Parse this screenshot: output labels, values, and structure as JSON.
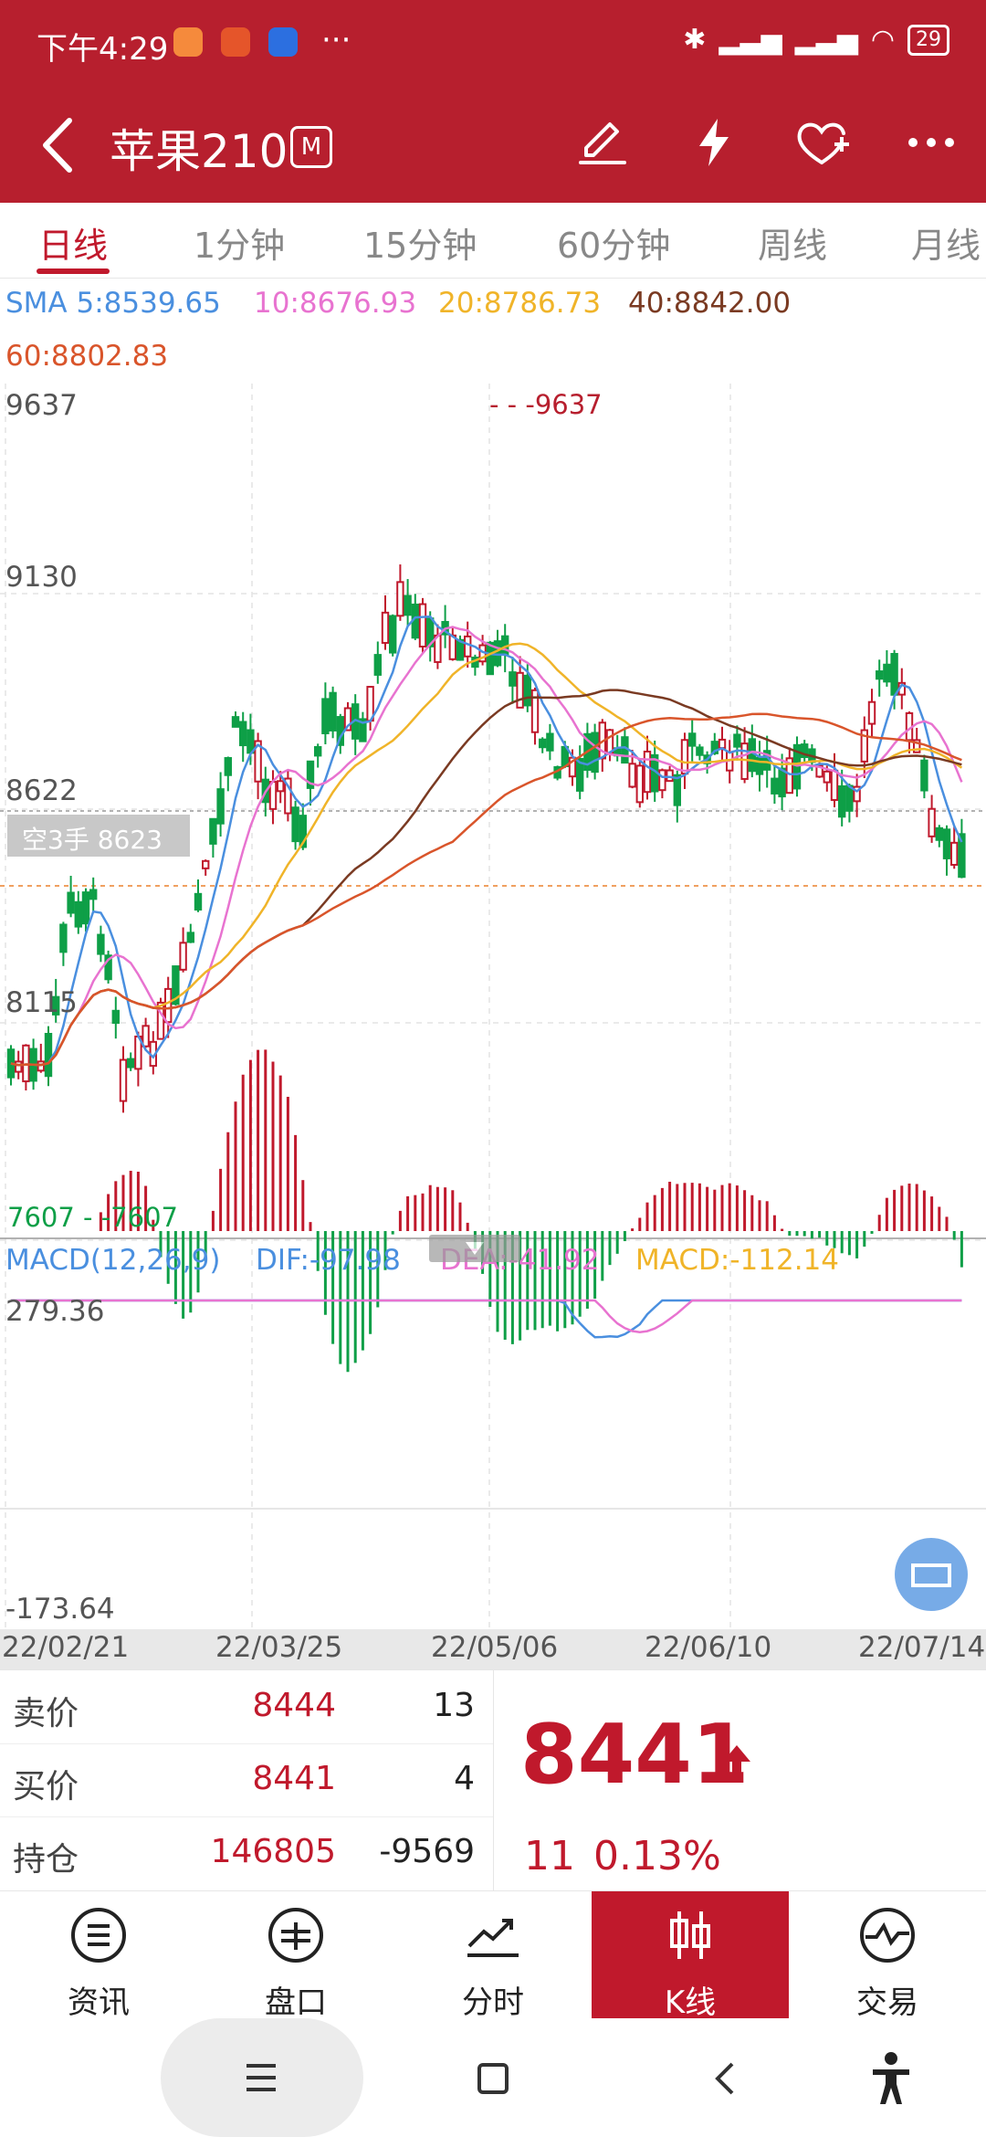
{
  "status_bar": {
    "time": "下午4:29",
    "more": "···",
    "battery": "29",
    "app_icon_colors": [
      "#f58a3c",
      "#e5552a",
      "#2c6fe0"
    ]
  },
  "header": {
    "back_icon": "chevron-left-icon",
    "title": "苹果210",
    "badge": "M",
    "icons": [
      "edit-icon",
      "lightning-icon",
      "heart-add-icon",
      "more-icon"
    ]
  },
  "tabs": [
    {
      "label": "日线",
      "active": true
    },
    {
      "label": "1分钟"
    },
    {
      "label": "15分钟"
    },
    {
      "label": "60分钟"
    },
    {
      "label": "周线"
    },
    {
      "label": "月线"
    }
  ],
  "kline": {
    "sma_legend": {
      "sma5": "SMA 5:8539.65",
      "sma10": "10:8676.93",
      "sma20": "20:8786.73",
      "sma40": "40:8842.00",
      "sma60": "60:8802.83"
    },
    "colors": {
      "up": "#c0192c",
      "down": "#0e9f47",
      "ma5": "#4a8fdf",
      "ma10": "#e873d0",
      "ma20": "#f0b429",
      "ma40": "#7a3a22",
      "ma60": "#d9552b"
    },
    "y_axis": [
      "9637",
      "9130",
      "8622",
      "8115"
    ],
    "high_label": "- - -9637",
    "low_label": "7607 - -7607",
    "position_tag": "空3手 8623"
  },
  "macd": {
    "title": "MACD(12,26,9)",
    "dif": "DIF:-97.98",
    "dea": "DEA:-41.92",
    "macd": "MACD:-112.14",
    "y_max": "279.36",
    "y_min": "-173.64",
    "colors": {
      "dif": "#4a8fdf",
      "dea": "#e873d0",
      "macd_label": "#f0b429"
    }
  },
  "x_axis": [
    "22/02/21",
    "22/03/25",
    "22/05/06",
    "22/06/10",
    "22/07/14"
  ],
  "quote": {
    "sell": {
      "label": "卖价",
      "price": "8444",
      "qty": "13"
    },
    "buy": {
      "label": "买价",
      "price": "8441",
      "qty": "4"
    },
    "hold": {
      "label": "持仓",
      "value": "146805",
      "change": "-9569"
    },
    "last": "8441",
    "change": "11",
    "change_pct": "0.13%"
  },
  "bottom_nav": [
    {
      "label": "资讯",
      "icon": "news-icon"
    },
    {
      "label": "盘口",
      "icon": "orderbook-icon"
    },
    {
      "label": "分时",
      "icon": "timeshare-icon"
    },
    {
      "label": "K线",
      "icon": "kline-icon",
      "active": true
    },
    {
      "label": "交易",
      "icon": "trade-icon"
    }
  ]
}
